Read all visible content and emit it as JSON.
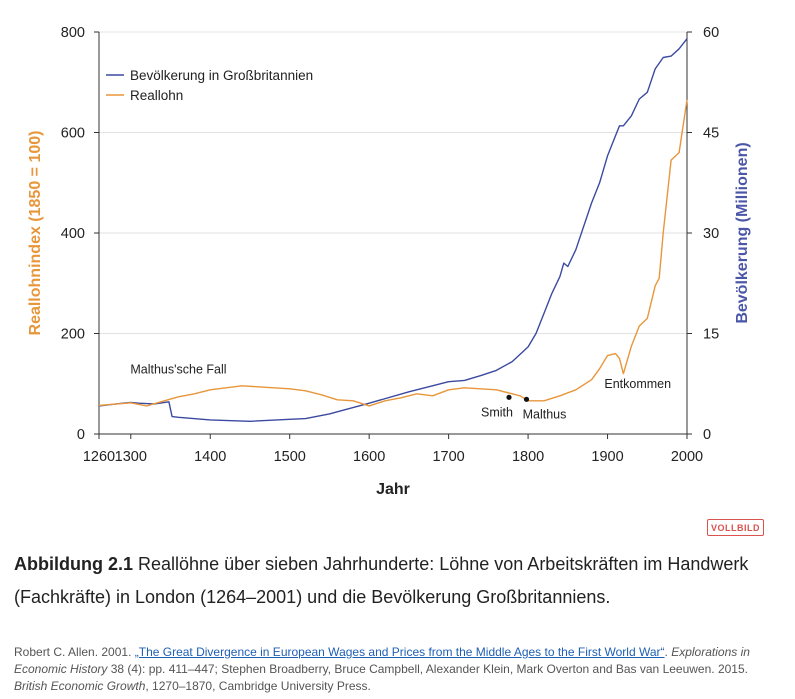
{
  "chart_data": {
    "type": "line",
    "xlabel": "Jahr",
    "ylabel_left": "Reallohnindex (1850 = 100)",
    "ylabel_right": "Bevölkerung (Millionen)",
    "x_ticks": [
      "1260",
      "1300",
      "1400",
      "1500",
      "1600",
      "1700",
      "1800",
      "1900",
      "2000"
    ],
    "y_left_ticks": [
      "0",
      "200",
      "400",
      "600",
      "800"
    ],
    "y_right_ticks": [
      "0",
      "15",
      "30",
      "45",
      "60"
    ],
    "xlim": [
      1260,
      2000
    ],
    "ylim_left": [
      0,
      800
    ],
    "ylim_right": [
      0,
      60
    ],
    "grid": "horizontal",
    "legend_position": "top-left",
    "series": [
      {
        "name": "Bevölkerung in Großbritannien",
        "axis": "right",
        "color": "#3b4aa0",
        "x": [
          1260,
          1290,
          1300,
          1310,
          1330,
          1348,
          1352,
          1360,
          1400,
          1450,
          1500,
          1520,
          1550,
          1600,
          1650,
          1700,
          1720,
          1740,
          1760,
          1780,
          1800,
          1810,
          1820,
          1830,
          1840,
          1845,
          1850,
          1860,
          1870,
          1880,
          1890,
          1900,
          1910,
          1915,
          1920,
          1930,
          1940,
          1950,
          1960,
          1970,
          1980,
          1990,
          2000
        ],
        "values": [
          4.2,
          4.6,
          4.7,
          4.6,
          4.5,
          4.8,
          2.6,
          2.5,
          2.1,
          1.9,
          2.2,
          2.3,
          3.0,
          4.6,
          6.3,
          7.8,
          8.0,
          8.7,
          9.5,
          10.8,
          13.0,
          15.0,
          18.0,
          21.0,
          23.5,
          25.5,
          25.0,
          27.5,
          31.0,
          34.5,
          37.5,
          41.5,
          44.5,
          46.0,
          46.0,
          47.5,
          50.0,
          51.0,
          54.5,
          56.2,
          56.4,
          57.5,
          59.0
        ]
      },
      {
        "name": "Reallohn",
        "axis": "left",
        "color": "#e8963a",
        "x": [
          1260,
          1300,
          1320,
          1340,
          1360,
          1380,
          1400,
          1420,
          1440,
          1460,
          1480,
          1500,
          1520,
          1540,
          1560,
          1580,
          1600,
          1620,
          1640,
          1660,
          1680,
          1700,
          1720,
          1740,
          1760,
          1780,
          1790,
          1800,
          1820,
          1840,
          1860,
          1880,
          1890,
          1900,
          1910,
          1915,
          1920,
          1930,
          1940,
          1950,
          1960,
          1965,
          1970,
          1980,
          1990,
          2000
        ],
        "values": [
          57,
          62,
          56,
          65,
          74,
          80,
          88,
          92,
          96,
          94,
          92,
          90,
          86,
          78,
          68,
          66,
          56,
          66,
          72,
          80,
          76,
          88,
          92,
          90,
          88,
          80,
          76,
          66,
          66,
          76,
          88,
          108,
          130,
          156,
          160,
          150,
          120,
          175,
          215,
          230,
          295,
          310,
          400,
          545,
          560,
          665
        ]
      }
    ],
    "annotations": [
      {
        "text": "Malthus'sche Fall",
        "x": 1360,
        "y_left": 128
      },
      {
        "text": "Smith",
        "x": 1776,
        "y_left": 73
      },
      {
        "text": "Malthus",
        "x": 1798,
        "y_left": 69
      },
      {
        "text": "Entkommen",
        "x": 1938,
        "y_left": 100
      }
    ]
  },
  "badge": "VOLLBILD",
  "caption": {
    "label": "Abbildung 2.1",
    "text": "Reallöhne über sieben Jahrhunderte: Löhne von Arbeitskräften im Handwerk (Fachkräfte) in London (1264–2001) und die Bevölkerung Großbritanniens."
  },
  "source": {
    "prefix": "Robert C. Allen. 2001. ",
    "link": "„The Great Divergence in European Wages and Prices from the Middle Ages to the First World War“",
    "after_link": ". ",
    "journal": "Explorations in Economic History",
    "middle": " 38 (4): pp. 411–447; Stephen Broadberry, Bruce Campbell, Alexander Klein, Mark Overton and Bas van Leeuwen. 2015. ",
    "book": "British Economic Growth",
    "suffix": ", 1270–1870, Cambridge University Press."
  }
}
